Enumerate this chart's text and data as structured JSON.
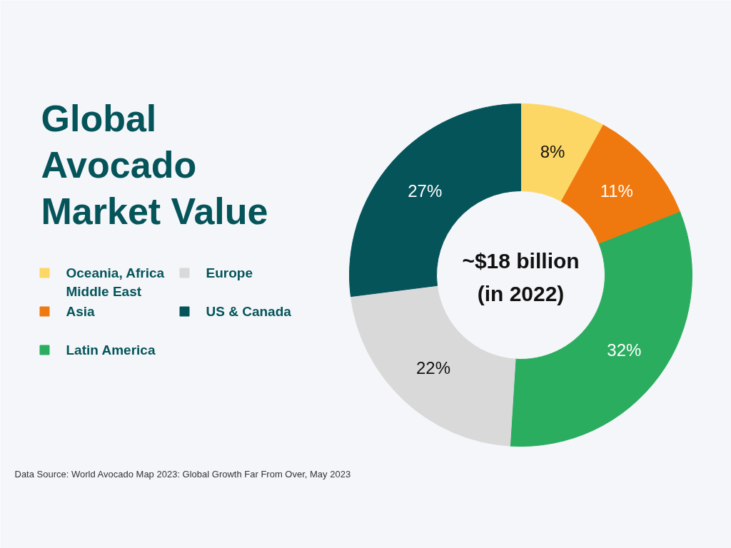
{
  "chart_data": {
    "type": "donut",
    "title": "Global Avocado Market Value",
    "categories": [
      "Oceania, Africa Middle East",
      "Asia",
      "Latin America",
      "Europe",
      "US & Canada"
    ],
    "values": [
      8,
      11,
      32,
      22,
      27
    ],
    "colors": [
      "#fdd765",
      "#f0790f",
      "#2aad5f",
      "#d9d9d9",
      "#04545a"
    ],
    "value_labels": [
      "8%",
      "11%",
      "32%",
      "22%",
      "27%"
    ],
    "legend": "left",
    "annotations": [
      "~$18 billion\n(in 2022)",
      "Data Source: World Avocado Map 2023: Global Growth Far From Over, May 2023"
    ]
  }
}
